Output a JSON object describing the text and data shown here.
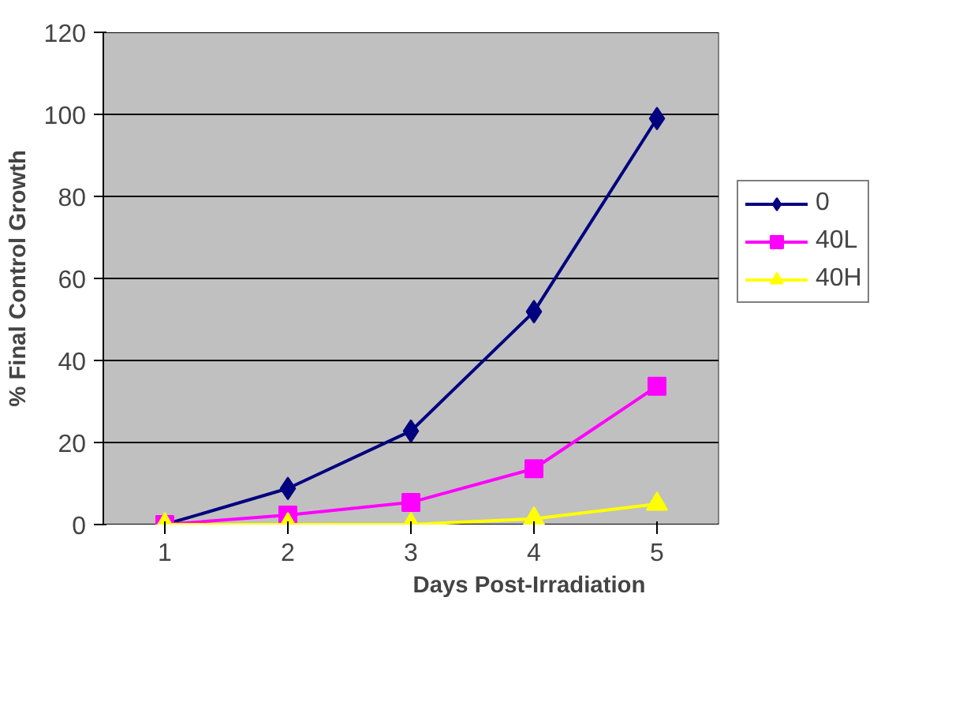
{
  "chart_data": {
    "type": "line",
    "xlabel": "Days Post-Irradiation",
    "ylabel": "% Final Control Growth",
    "categories": [
      "1",
      "2",
      "3",
      "4",
      "5"
    ],
    "series": [
      {
        "name": "0",
        "color": "#000080",
        "marker": "diamond",
        "values": [
          0,
          8.8,
          22.8,
          51.9,
          99
        ]
      },
      {
        "name": "40L",
        "color": "#ff00ff",
        "marker": "square",
        "values": [
          0,
          2.3,
          5.4,
          13.6,
          33.7
        ]
      },
      {
        "name": "40H",
        "color": "#ffff00",
        "marker": "triangle",
        "values": [
          0,
          0,
          0,
          1.4,
          5
        ]
      }
    ],
    "ylim": [
      0,
      120
    ],
    "yticks": [
      0,
      20,
      40,
      60,
      80,
      100,
      120
    ],
    "grid": "y",
    "legend": "right"
  }
}
